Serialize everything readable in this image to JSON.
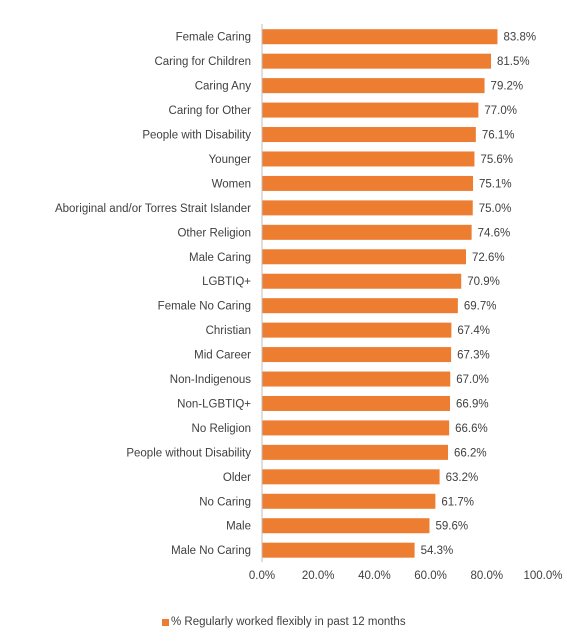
{
  "chart_data": {
    "type": "bar",
    "orientation": "horizontal",
    "categories": [
      "Female Caring",
      "Caring for Children",
      "Caring Any",
      "Caring for Other",
      "People with Disability",
      "Younger",
      "Women",
      "Aboriginal and/or Torres Strait Islander",
      "Other Religion",
      "Male Caring",
      "LGBTIQ+",
      "Female No Caring",
      "Christian",
      "Mid Career",
      "Non-Indigenous",
      "Non-LGBTIQ+",
      "No Religion",
      "People without Disability",
      "Older",
      "No Caring",
      "Male",
      "Male No Caring"
    ],
    "series": [
      {
        "name": "% Regularly worked flexibly in past 12 months",
        "values": [
          83.8,
          81.5,
          79.2,
          77.0,
          76.1,
          75.6,
          75.1,
          75.0,
          74.6,
          72.6,
          70.9,
          69.7,
          67.4,
          67.3,
          67.0,
          66.9,
          66.6,
          66.2,
          63.2,
          61.7,
          59.6,
          54.3
        ],
        "labels": [
          "83.8%",
          "81.5%",
          "79.2%",
          "77.0%",
          "76.1%",
          "75.6%",
          "75.1%",
          "75.0%",
          "74.6%",
          "72.6%",
          "70.9%",
          "69.7%",
          "67.4%",
          "67.3%",
          "67.0%",
          "66.9%",
          "66.6%",
          "66.2%",
          "63.2%",
          "61.7%",
          "59.6%",
          "54.3%"
        ],
        "color": "#ED7D31"
      }
    ],
    "xlim": [
      0,
      100
    ],
    "x_ticks": [
      0,
      20,
      40,
      60,
      80,
      100
    ],
    "x_tick_labels": [
      "0.0%",
      "20.0%",
      "40.0%",
      "60.0%",
      "80.0%",
      "100.0%"
    ],
    "axis_color": "#BFBFBF",
    "grid": false,
    "legend_position": "bottom"
  }
}
